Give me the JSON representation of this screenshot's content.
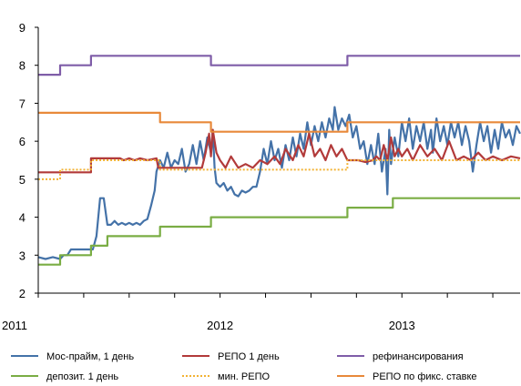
{
  "chart_data": {
    "type": "line",
    "title": "",
    "xlabel": "",
    "ylabel": "",
    "x_unit": "year",
    "xlim": [
      2011.0,
      2013.65
    ],
    "ylim": [
      2,
      9
    ],
    "yticks": [
      2,
      3,
      4,
      5,
      6,
      7,
      8,
      9
    ],
    "xtick_labels": [
      {
        "x": 2011.0,
        "label": "2011"
      },
      {
        "x": 2012.0,
        "label": "2012"
      },
      {
        "x": 2013.0,
        "label": "2013"
      }
    ],
    "grid": false,
    "legend_position": "bottom",
    "series": [
      {
        "name": "Мос-прайм, 1 день",
        "color": "#4472A8",
        "points": [
          [
            2011.0,
            2.95
          ],
          [
            2011.04,
            2.9
          ],
          [
            2011.08,
            2.95
          ],
          [
            2011.12,
            2.9
          ],
          [
            2011.14,
            3.0
          ],
          [
            2011.16,
            3.0
          ],
          [
            2011.18,
            3.15
          ],
          [
            2011.22,
            3.15
          ],
          [
            2011.26,
            3.15
          ],
          [
            2011.3,
            3.15
          ],
          [
            2011.32,
            3.5
          ],
          [
            2011.34,
            4.5
          ],
          [
            2011.36,
            4.5
          ],
          [
            2011.38,
            3.8
          ],
          [
            2011.4,
            3.8
          ],
          [
            2011.42,
            3.9
          ],
          [
            2011.44,
            3.8
          ],
          [
            2011.46,
            3.85
          ],
          [
            2011.48,
            3.8
          ],
          [
            2011.5,
            3.85
          ],
          [
            2011.52,
            3.8
          ],
          [
            2011.54,
            3.85
          ],
          [
            2011.56,
            3.8
          ],
          [
            2011.58,
            3.9
          ],
          [
            2011.6,
            3.95
          ],
          [
            2011.62,
            4.3
          ],
          [
            2011.64,
            4.7
          ],
          [
            2011.65,
            5.2
          ],
          [
            2011.67,
            5.5
          ],
          [
            2011.69,
            5.3
          ],
          [
            2011.71,
            5.7
          ],
          [
            2011.73,
            5.3
          ],
          [
            2011.75,
            5.5
          ],
          [
            2011.77,
            5.4
          ],
          [
            2011.79,
            5.8
          ],
          [
            2011.81,
            5.2
          ],
          [
            2011.83,
            5.4
          ],
          [
            2011.85,
            5.9
          ],
          [
            2011.87,
            5.4
          ],
          [
            2011.89,
            6.0
          ],
          [
            2011.91,
            5.5
          ],
          [
            2011.93,
            6.1
          ],
          [
            2011.95,
            5.7
          ],
          [
            2011.96,
            6.3
          ],
          [
            2011.97,
            5.3
          ],
          [
            2011.98,
            4.9
          ],
          [
            2012.0,
            4.8
          ],
          [
            2012.02,
            4.9
          ],
          [
            2012.04,
            4.7
          ],
          [
            2012.06,
            4.8
          ],
          [
            2012.08,
            4.6
          ],
          [
            2012.1,
            4.55
          ],
          [
            2012.12,
            4.7
          ],
          [
            2012.14,
            4.65
          ],
          [
            2012.16,
            4.7
          ],
          [
            2012.18,
            4.8
          ],
          [
            2012.2,
            4.8
          ],
          [
            2012.22,
            5.2
          ],
          [
            2012.24,
            5.8
          ],
          [
            2012.26,
            5.4
          ],
          [
            2012.28,
            6.0
          ],
          [
            2012.3,
            5.5
          ],
          [
            2012.32,
            5.8
          ],
          [
            2012.34,
            5.3
          ],
          [
            2012.36,
            5.9
          ],
          [
            2012.38,
            5.5
          ],
          [
            2012.4,
            6.1
          ],
          [
            2012.42,
            5.6
          ],
          [
            2012.44,
            6.2
          ],
          [
            2012.46,
            5.8
          ],
          [
            2012.48,
            6.5
          ],
          [
            2012.5,
            5.9
          ],
          [
            2012.52,
            6.4
          ],
          [
            2012.54,
            6.0
          ],
          [
            2012.56,
            6.5
          ],
          [
            2012.58,
            6.1
          ],
          [
            2012.6,
            6.6
          ],
          [
            2012.62,
            6.3
          ],
          [
            2012.63,
            6.9
          ],
          [
            2012.65,
            6.3
          ],
          [
            2012.67,
            6.6
          ],
          [
            2012.69,
            6.4
          ],
          [
            2012.71,
            6.7
          ],
          [
            2012.73,
            6.1
          ],
          [
            2012.75,
            6.4
          ],
          [
            2012.77,
            5.8
          ],
          [
            2012.79,
            6.0
          ],
          [
            2012.81,
            5.4
          ],
          [
            2012.83,
            5.9
          ],
          [
            2012.85,
            5.4
          ],
          [
            2012.87,
            6.2
          ],
          [
            2012.89,
            5.2
          ],
          [
            2012.91,
            5.8
          ],
          [
            2012.92,
            4.6
          ],
          [
            2012.93,
            6.3
          ],
          [
            2012.94,
            5.4
          ],
          [
            2012.96,
            6.1
          ],
          [
            2012.98,
            5.6
          ],
          [
            2013.0,
            6.5
          ],
          [
            2013.02,
            6.0
          ],
          [
            2013.04,
            6.6
          ],
          [
            2013.06,
            5.8
          ],
          [
            2013.08,
            6.4
          ],
          [
            2013.1,
            6.0
          ],
          [
            2013.12,
            6.5
          ],
          [
            2013.14,
            5.8
          ],
          [
            2013.16,
            6.3
          ],
          [
            2013.17,
            5.7
          ],
          [
            2013.19,
            6.6
          ],
          [
            2013.21,
            6.0
          ],
          [
            2013.23,
            6.4
          ],
          [
            2013.25,
            5.9
          ],
          [
            2013.27,
            6.5
          ],
          [
            2013.29,
            6.1
          ],
          [
            2013.31,
            6.5
          ],
          [
            2013.33,
            5.9
          ],
          [
            2013.35,
            6.4
          ],
          [
            2013.37,
            6.0
          ],
          [
            2013.39,
            5.2
          ],
          [
            2013.41,
            5.9
          ],
          [
            2013.43,
            6.5
          ],
          [
            2013.45,
            6.0
          ],
          [
            2013.47,
            6.4
          ],
          [
            2013.49,
            5.7
          ],
          [
            2013.51,
            6.3
          ],
          [
            2013.53,
            5.8
          ],
          [
            2013.55,
            6.5
          ],
          [
            2013.57,
            6.1
          ],
          [
            2013.59,
            6.3
          ],
          [
            2013.61,
            5.9
          ],
          [
            2013.63,
            6.4
          ],
          [
            2013.65,
            6.2
          ]
        ]
      },
      {
        "name": "РЕПО 1 день",
        "color": "#B23A3A",
        "points": [
          [
            2011.0,
            5.18
          ],
          [
            2011.12,
            5.18
          ],
          [
            2011.24,
            5.18
          ],
          [
            2011.29,
            5.18
          ],
          [
            2011.29,
            5.55
          ],
          [
            2011.45,
            5.55
          ],
          [
            2011.47,
            5.5
          ],
          [
            2011.5,
            5.55
          ],
          [
            2011.53,
            5.5
          ],
          [
            2011.56,
            5.55
          ],
          [
            2011.6,
            5.5
          ],
          [
            2011.65,
            5.55
          ],
          [
            2011.66,
            5.3
          ],
          [
            2011.7,
            5.3
          ],
          [
            2011.75,
            5.3
          ],
          [
            2011.8,
            5.3
          ],
          [
            2011.85,
            5.3
          ],
          [
            2011.9,
            5.3
          ],
          [
            2011.92,
            5.7
          ],
          [
            2011.94,
            6.2
          ],
          [
            2011.95,
            5.6
          ],
          [
            2011.96,
            6.3
          ],
          [
            2011.98,
            5.7
          ],
          [
            2012.0,
            5.5
          ],
          [
            2012.03,
            5.3
          ],
          [
            2012.06,
            5.6
          ],
          [
            2012.1,
            5.3
          ],
          [
            2012.14,
            5.4
          ],
          [
            2012.18,
            5.3
          ],
          [
            2012.22,
            5.5
          ],
          [
            2012.26,
            5.4
          ],
          [
            2012.3,
            5.6
          ],
          [
            2012.33,
            5.4
          ],
          [
            2012.36,
            5.8
          ],
          [
            2012.4,
            5.5
          ],
          [
            2012.43,
            5.9
          ],
          [
            2012.46,
            5.6
          ],
          [
            2012.49,
            6.2
          ],
          [
            2012.52,
            5.6
          ],
          [
            2012.55,
            5.8
          ],
          [
            2012.58,
            5.5
          ],
          [
            2012.61,
            5.9
          ],
          [
            2012.64,
            5.6
          ],
          [
            2012.67,
            5.8
          ],
          [
            2012.7,
            5.5
          ],
          [
            2012.73,
            5.5
          ],
          [
            2012.76,
            5.5
          ],
          [
            2012.8,
            5.45
          ],
          [
            2012.84,
            5.5
          ],
          [
            2012.86,
            5.6
          ],
          [
            2012.88,
            5.5
          ],
          [
            2012.9,
            5.9
          ],
          [
            2012.92,
            5.5
          ],
          [
            2012.94,
            6.1
          ],
          [
            2012.96,
            5.6
          ],
          [
            2012.98,
            5.8
          ],
          [
            2013.0,
            5.6
          ],
          [
            2013.03,
            5.8
          ],
          [
            2013.06,
            5.5
          ],
          [
            2013.1,
            5.9
          ],
          [
            2013.14,
            5.6
          ],
          [
            2013.18,
            5.8
          ],
          [
            2013.22,
            5.5
          ],
          [
            2013.26,
            6.0
          ],
          [
            2013.3,
            5.5
          ],
          [
            2013.34,
            5.6
          ],
          [
            2013.38,
            5.5
          ],
          [
            2013.42,
            5.7
          ],
          [
            2013.46,
            5.5
          ],
          [
            2013.5,
            5.6
          ],
          [
            2013.55,
            5.5
          ],
          [
            2013.6,
            5.6
          ],
          [
            2013.65,
            5.55
          ]
        ]
      },
      {
        "name": "рефинансирования",
        "color": "#7F5DA8",
        "points": [
          [
            2011.0,
            7.75
          ],
          [
            2011.12,
            7.75
          ],
          [
            2011.12,
            8.0
          ],
          [
            2011.29,
            8.0
          ],
          [
            2011.29,
            8.25
          ],
          [
            2011.95,
            8.25
          ],
          [
            2011.95,
            8.0
          ],
          [
            2012.7,
            8.0
          ],
          [
            2012.7,
            8.25
          ],
          [
            2013.65,
            8.25
          ]
        ]
      },
      {
        "name": "депозит. 1 день",
        "color": "#7AAD44",
        "points": [
          [
            2011.0,
            2.75
          ],
          [
            2011.12,
            2.75
          ],
          [
            2011.12,
            3.0
          ],
          [
            2011.29,
            3.0
          ],
          [
            2011.29,
            3.25
          ],
          [
            2011.38,
            3.25
          ],
          [
            2011.38,
            3.5
          ],
          [
            2011.67,
            3.5
          ],
          [
            2011.67,
            3.75
          ],
          [
            2011.95,
            3.75
          ],
          [
            2011.95,
            4.0
          ],
          [
            2012.7,
            4.0
          ],
          [
            2012.7,
            4.25
          ],
          [
            2012.95,
            4.25
          ],
          [
            2012.95,
            4.5
          ],
          [
            2013.65,
            4.5
          ]
        ]
      },
      {
        "name": "мин. РЕПО",
        "color": "#F2B233",
        "dashed": true,
        "points": [
          [
            2011.0,
            5.0
          ],
          [
            2011.12,
            5.0
          ],
          [
            2011.12,
            5.25
          ],
          [
            2011.29,
            5.25
          ],
          [
            2011.29,
            5.5
          ],
          [
            2011.67,
            5.5
          ],
          [
            2011.67,
            5.25
          ],
          [
            2012.7,
            5.25
          ],
          [
            2012.7,
            5.5
          ],
          [
            2013.65,
            5.5
          ]
        ]
      },
      {
        "name": "РЕПО по фикс. ставке",
        "color": "#E8893A",
        "points": [
          [
            2011.0,
            6.75
          ],
          [
            2011.67,
            6.75
          ],
          [
            2011.67,
            6.5
          ],
          [
            2011.95,
            6.5
          ],
          [
            2011.95,
            6.25
          ],
          [
            2012.7,
            6.25
          ],
          [
            2012.7,
            6.5
          ],
          [
            2013.65,
            6.5
          ]
        ]
      }
    ]
  }
}
